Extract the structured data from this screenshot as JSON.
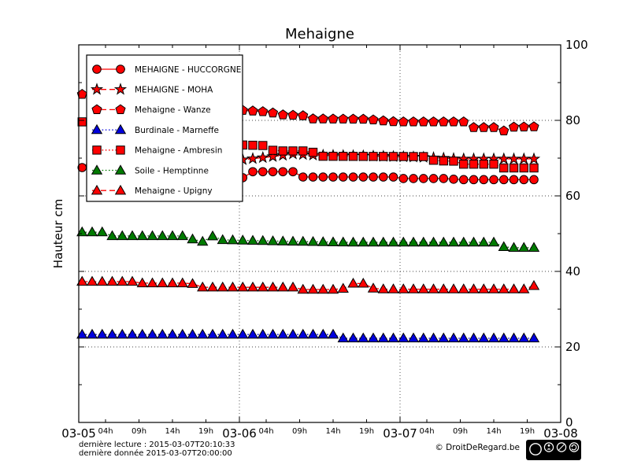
{
  "chart_data": {
    "type": "line",
    "title": "Mehaigne",
    "ylabel": "Hauteur cm",
    "xlabel": "",
    "ylim": [
      0,
      100
    ],
    "xlim_hours": [
      0,
      72
    ],
    "yticks_values": [
      0,
      20,
      40,
      60,
      80,
      100
    ],
    "yticks_labels": [
      "0",
      "20",
      "40",
      "60",
      "80",
      "100"
    ],
    "y_minor_ticks": [
      10,
      30,
      50,
      70,
      90
    ],
    "x_major_ticks": [
      {
        "label": "03-05",
        "hour": 0
      },
      {
        "label": "03-06",
        "hour": 24
      },
      {
        "label": "03-07",
        "hour": 48
      },
      {
        "label": "03-08",
        "hour": 72
      }
    ],
    "x_minor_hours_in_day": [
      4,
      9,
      14,
      19
    ],
    "x_minor_labels": [
      "04h",
      "09h",
      "14h",
      "19h"
    ],
    "grid": {
      "horizontal_at": [
        20,
        40,
        60,
        80
      ],
      "vertical_at_hours": [
        24,
        48
      ],
      "style": "dotted"
    },
    "legend_position": "upper-left",
    "marker_interval_hours": 1.5,
    "series": [
      {
        "name": "MEHAIGNE - HUCCORGNE",
        "color": "#ff0000",
        "marker": "circle",
        "linestyle": "solid",
        "breakpoints": [
          [
            0.5,
            67.5
          ],
          [
            1.2,
            69.5
          ],
          [
            8,
            68.3
          ],
          [
            16,
            66.5
          ],
          [
            24,
            64.9
          ],
          [
            24.6,
            64.8
          ],
          [
            25.2,
            66.4
          ],
          [
            32.6,
            66.4
          ],
          [
            33.4,
            65.0
          ],
          [
            47.5,
            65.0
          ],
          [
            48.5,
            64.6
          ],
          [
            55.5,
            64.6
          ],
          [
            56.3,
            64.3
          ],
          [
            68,
            64.3
          ]
        ]
      },
      {
        "name": "MEHAIGNE - MOHA",
        "color": "#ff0000",
        "marker": "star",
        "linestyle": "dashed",
        "breakpoints": [
          [
            2,
            68.0
          ],
          [
            12,
            68.6
          ],
          [
            24,
            69.5
          ],
          [
            29,
            70.4
          ],
          [
            32,
            71.1
          ],
          [
            35,
            70.8
          ],
          [
            45,
            70.5
          ],
          [
            52,
            70.2
          ],
          [
            55.5,
            69.9
          ],
          [
            56.5,
            69.8
          ],
          [
            68,
            69.8
          ]
        ]
      },
      {
        "name": "Mehaigne - Wanze",
        "color": "#ff0000",
        "marker": "pentagon",
        "linestyle": "dashed",
        "breakpoints": [
          [
            0.5,
            86.9
          ],
          [
            8,
            85.6
          ],
          [
            16,
            84.1
          ],
          [
            24,
            82.7
          ],
          [
            28.5,
            82.2
          ],
          [
            30,
            81.5
          ],
          [
            34,
            81.2
          ],
          [
            35,
            80.4
          ],
          [
            43,
            80.3
          ],
          [
            46,
            79.8
          ],
          [
            47.5,
            79.6
          ],
          [
            57.5,
            79.6
          ],
          [
            58.5,
            78.1
          ],
          [
            62.3,
            78.1
          ],
          [
            63.2,
            76.9
          ],
          [
            64.5,
            78.2
          ],
          [
            68,
            78.3
          ]
        ]
      },
      {
        "name": "Burdinale - Marneffe",
        "color": "#0000dd",
        "marker": "triangle",
        "linestyle": "dotted",
        "breakpoints": [
          [
            0.5,
            23.3
          ],
          [
            38.2,
            23.3
          ],
          [
            39,
            22.3
          ],
          [
            68,
            22.3
          ]
        ]
      },
      {
        "name": "Mehaigne - Ambresin",
        "color": "#ff0000",
        "marker": "square",
        "linestyle": "dotted",
        "breakpoints": [
          [
            0.5,
            79.6
          ],
          [
            8,
            77.8
          ],
          [
            16,
            75.8
          ],
          [
            24,
            73.5
          ],
          [
            28.3,
            73.3
          ],
          [
            29.1,
            71.9
          ],
          [
            34.8,
            71.9
          ],
          [
            35.6,
            70.5
          ],
          [
            52.3,
            70.4
          ],
          [
            53.1,
            69.3
          ],
          [
            56,
            69.2
          ],
          [
            56.8,
            68.4
          ],
          [
            62.2,
            68.4
          ],
          [
            63,
            67.4
          ],
          [
            68,
            67.4
          ]
        ]
      },
      {
        "name": "Soile - Hemptinne",
        "color": "#007a00",
        "marker": "triangle",
        "linestyle": "dotted",
        "breakpoints": [
          [
            0.5,
            50.4
          ],
          [
            4.3,
            50.4
          ],
          [
            5,
            49.4
          ],
          [
            16.6,
            49.4
          ],
          [
            17.3,
            47.9
          ],
          [
            19.3,
            47.9
          ],
          [
            19.8,
            49.7
          ],
          [
            20.5,
            48.4
          ],
          [
            30,
            48.0
          ],
          [
            40,
            47.7
          ],
          [
            62.9,
            47.7
          ],
          [
            63.6,
            46.3
          ],
          [
            68,
            46.3
          ]
        ]
      },
      {
        "name": "Mehaigne - Upigny",
        "color": "#ff0000",
        "marker": "triangle",
        "linestyle": "dashed",
        "breakpoints": [
          [
            0.5,
            37.3
          ],
          [
            8.5,
            37.3
          ],
          [
            9.5,
            36.9
          ],
          [
            16.9,
            36.9
          ],
          [
            17.6,
            35.8
          ],
          [
            32.6,
            35.8
          ],
          [
            33.3,
            35.2
          ],
          [
            39.4,
            35.2
          ],
          [
            40,
            36.8
          ],
          [
            43.4,
            36.8
          ],
          [
            44.1,
            35.3
          ],
          [
            66.5,
            35.3
          ],
          [
            68,
            36.2
          ]
        ]
      }
    ]
  },
  "footer": {
    "last_reading": "dernière lecture : 2015-03-07T20:10:33",
    "last_data": "dernière donnée  2015-03-07T20:00:00",
    "copyright": "© DroitDeRegard.be",
    "license": {
      "name": "CC BY-NC-SA",
      "badge_labels": [
        "BY",
        "NC",
        "SA"
      ],
      "cc_text": "cc"
    }
  },
  "colors": {
    "axis": "#000000",
    "grid": "#444444",
    "background": "#ffffff",
    "badge_bg": "#000000"
  }
}
